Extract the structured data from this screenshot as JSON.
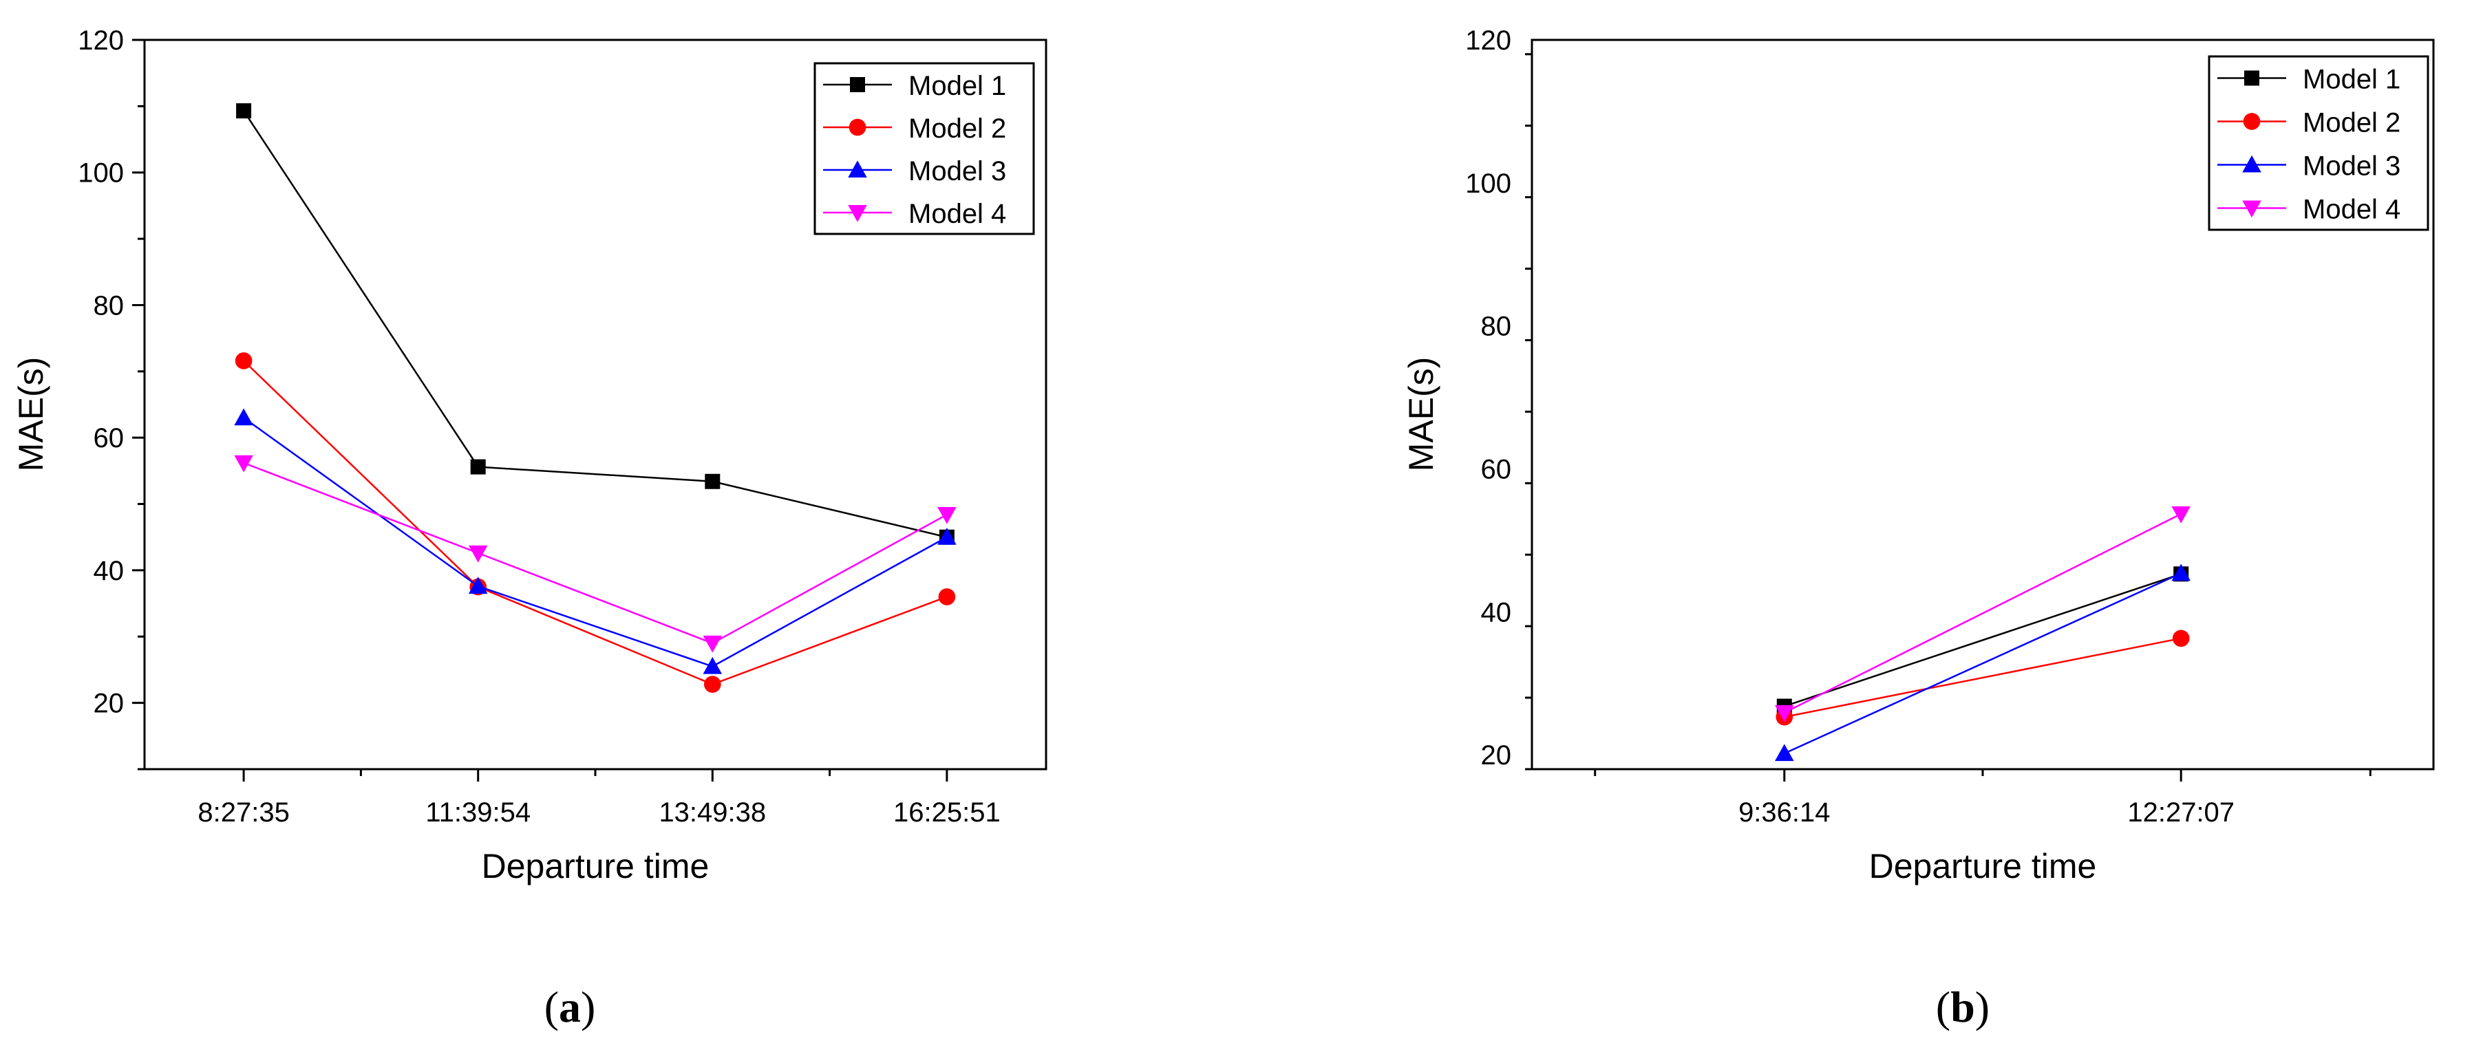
{
  "chart_data": [
    {
      "type": "line",
      "title": "",
      "xlabel": "Departure time",
      "ylabel": "MAE(s)",
      "caption": "(a)",
      "caption_letter": "a",
      "categories": [
        "8:27:35",
        "11:39:54",
        "13:49:38",
        "16:25:51"
      ],
      "ylim": [
        10,
        120
      ],
      "yticks": [
        20,
        40,
        60,
        80,
        100,
        120
      ],
      "legend_position": "top-right",
      "series": [
        {
          "name": "Model 1",
          "color": "#000000",
          "marker": "square",
          "values": [
            109.3,
            55.6,
            53.4,
            45.0
          ]
        },
        {
          "name": "Model 2",
          "color": "#ff0000",
          "marker": "circle",
          "values": [
            71.6,
            37.5,
            22.8,
            36.0
          ]
        },
        {
          "name": "Model 3",
          "color": "#0000ff",
          "marker": "triangle-up",
          "values": [
            63.0,
            37.6,
            25.5,
            45.0
          ]
        },
        {
          "name": "Model 4",
          "color": "#ff00ff",
          "marker": "triangle-down",
          "values": [
            56.2,
            42.6,
            29.0,
            48.4
          ]
        }
      ]
    },
    {
      "type": "line",
      "title": "",
      "xlabel": "Departure time",
      "ylabel": "MAE(s)",
      "caption": "(b)",
      "caption_letter": "b",
      "categories": [
        "9:36:14",
        "12:27:07"
      ],
      "ylim": [
        18,
        120
      ],
      "yticks": [
        20,
        40,
        60,
        80,
        100,
        120
      ],
      "legend_position": "top-right",
      "series": [
        {
          "name": "Model 1",
          "color": "#000000",
          "marker": "square",
          "values": [
            26.8,
            45.3
          ]
        },
        {
          "name": "Model 2",
          "color": "#ff0000",
          "marker": "circle",
          "values": [
            25.3,
            36.3
          ]
        },
        {
          "name": "Model 3",
          "color": "#0000ff",
          "marker": "triangle-up",
          "values": [
            20.2,
            45.4
          ]
        },
        {
          "name": "Model 4",
          "color": "#ff00ff",
          "marker": "triangle-down",
          "values": [
            25.9,
            53.7
          ]
        }
      ]
    }
  ]
}
